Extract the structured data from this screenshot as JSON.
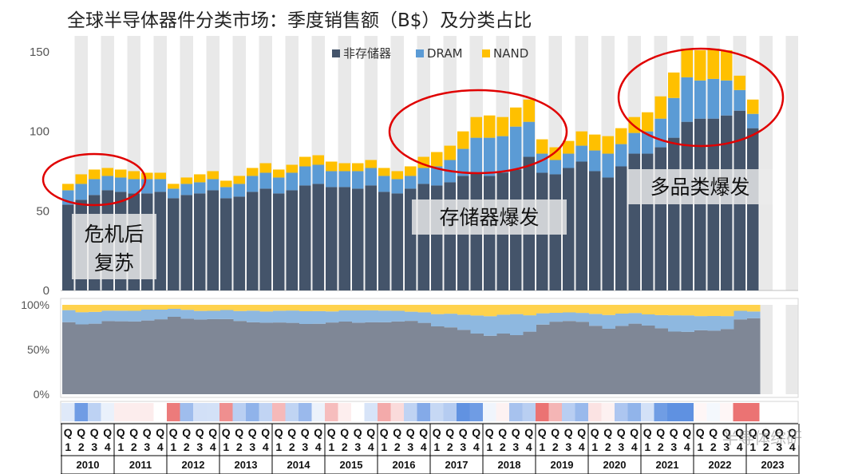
{
  "title": "全球半导体器件分类市场：季度销售额（B$）及分类占比",
  "watermark": "半导体综研",
  "colors": {
    "logic": "#44546A",
    "dram": "#5B9BD5",
    "nand": "#FFC000",
    "annotation_circle": "#E00000",
    "band_gray": "#E9E9E9"
  },
  "annotations": [
    {
      "lines": [
        "危机后",
        "复苏"
      ]
    },
    {
      "lines": [
        "存储器爆发"
      ]
    },
    {
      "lines": [
        "多品类爆发"
      ]
    }
  ],
  "chart_data": [
    {
      "type": "bar",
      "stacked": true,
      "title": "",
      "ylim": [
        0,
        160
      ],
      "yticks": [
        "0",
        "50",
        "100",
        "150"
      ],
      "legend": {
        "placement": "top-center"
      },
      "years": [
        "2010",
        "2011",
        "2012",
        "2013",
        "2014",
        "2015",
        "2016",
        "2017",
        "2018",
        "2019",
        "2020",
        "2021",
        "2022",
        "2023"
      ],
      "quarters": [
        "Q1",
        "Q2",
        "Q3",
        "Q4"
      ],
      "x_label_quarter_prefix": "Q",
      "x_label_quarter_numbers": [
        "1",
        "2",
        "3",
        "4"
      ],
      "series": [
        {
          "name": "非存储器",
          "values": [
            54,
            57,
            60,
            63,
            62,
            61,
            61,
            62,
            58,
            60,
            61,
            63,
            58,
            59,
            62,
            64,
            61,
            63,
            66,
            67,
            65,
            65,
            64,
            66,
            62,
            61,
            64,
            67,
            66,
            68,
            72,
            74,
            72,
            74,
            76,
            84,
            74,
            73,
            77,
            81,
            75,
            71,
            78,
            86,
            86,
            90,
            96,
            106,
            108,
            108,
            110,
            113,
            102
          ]
        },
        {
          "name": "DRAM",
          "values": [
            9,
            10,
            10,
            9,
            9,
            9,
            9,
            8,
            6,
            7,
            7,
            7,
            7,
            8,
            10,
            10,
            10,
            11,
            12,
            12,
            10,
            10,
            11,
            11,
            10,
            9,
            8,
            10,
            12,
            14,
            17,
            22,
            24,
            23,
            27,
            22,
            12,
            9,
            9,
            10,
            13,
            15,
            14,
            13,
            14,
            18,
            25,
            28,
            24,
            25,
            22,
            13,
            9
          ]
        },
        {
          "name": "NAND",
          "values": [
            4,
            6,
            6,
            5,
            5,
            5,
            4,
            4,
            3,
            4,
            5,
            5,
            4,
            5,
            5,
            6,
            5,
            5,
            6,
            6,
            6,
            5,
            5,
            5,
            5,
            5,
            6,
            7,
            9,
            9,
            11,
            13,
            14,
            12,
            12,
            14,
            9,
            8,
            8,
            9,
            10,
            11,
            10,
            10,
            12,
            14,
            16,
            18,
            19,
            19,
            19,
            9,
            9
          ]
        }
      ]
    },
    {
      "type": "area",
      "stacked": true,
      "percent": true,
      "title": "",
      "ylim": [
        0,
        100
      ],
      "yticks": [
        "0%",
        "50%",
        "100%"
      ]
    },
    {
      "type": "heatmap",
      "title": "",
      "note": "quarter-over-quarter change strip (blue = growth, red = decline)"
    }
  ]
}
